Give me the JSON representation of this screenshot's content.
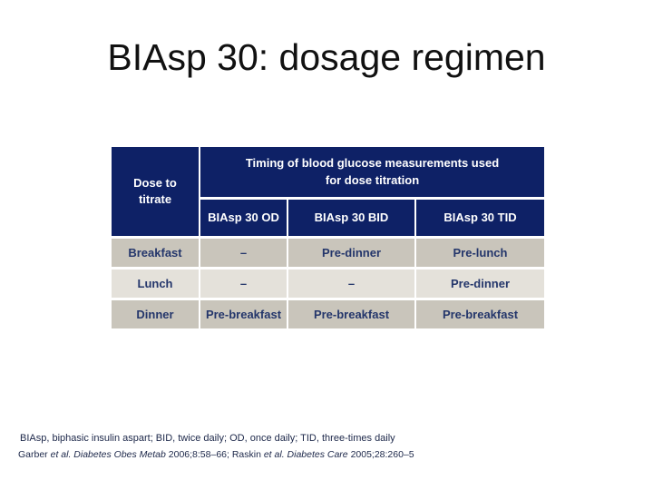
{
  "slide": {
    "title": "BIAsp 30: dosage regimen"
  },
  "table": {
    "corner_header": "Dose to titrate",
    "group_header": "Timing of blood glucose measurements used for dose titration",
    "columns": [
      "BIAsp 30 OD",
      "BIAsp 30 BID",
      "BIAsp 30 TID"
    ],
    "rows": [
      {
        "label": "Breakfast",
        "values": [
          "–",
          "Pre-dinner",
          "Pre-lunch"
        ]
      },
      {
        "label": "Lunch",
        "values": [
          "–",
          "–",
          "Pre-dinner"
        ]
      },
      {
        "label": "Dinner",
        "values": [
          "Pre-breakfast",
          "Pre-breakfast",
          "Pre-breakfast"
        ]
      }
    ]
  },
  "footnotes": {
    "abbreviations": "BIAsp, biphasic insulin aspart; BID, twice daily; OD, once daily; TID, three-times daily",
    "reference_segments": [
      {
        "text": "Garber ",
        "italic": false
      },
      {
        "text": "et al. Diabetes Obes Metab ",
        "italic": true
      },
      {
        "text": "2006;8:58–66; Raskin ",
        "italic": false
      },
      {
        "text": "et al. Diabetes Care ",
        "italic": true
      },
      {
        "text": "2005;28:260–5",
        "italic": false
      }
    ]
  },
  "colors": {
    "header_navy": "#0e2166",
    "row_dark": "#c9c5bb",
    "row_light": "#e4e1da",
    "cell_text_navy": "#24366b",
    "title_text": "#111111",
    "footnote_text": "#1c2749"
  }
}
